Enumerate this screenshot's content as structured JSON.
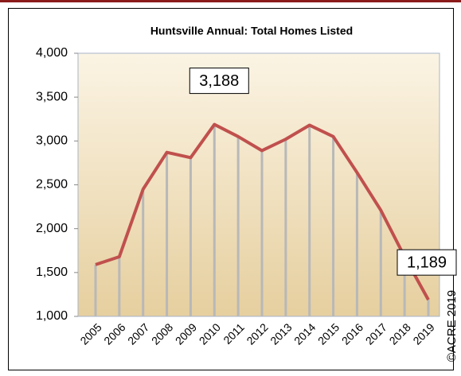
{
  "chart_data": {
    "type": "line",
    "title": "Huntsville Annual: Total Homes Listed",
    "categories": [
      "2005",
      "2006",
      "2007",
      "2008",
      "2009",
      "2010",
      "2011",
      "2012",
      "2013",
      "2014",
      "2015",
      "2016",
      "2017",
      "2018",
      "2019"
    ],
    "series": [
      {
        "name": "Total Homes Listed",
        "color": "#c0504d",
        "values": [
          1590,
          1680,
          2450,
          2870,
          2810,
          3188,
          3050,
          2890,
          3020,
          3180,
          3050,
          2640,
          2210,
          1680,
          1189
        ],
        "value_labels": [
          null,
          null,
          null,
          null,
          null,
          "3,188",
          null,
          null,
          null,
          null,
          null,
          null,
          null,
          null,
          "1,189"
        ]
      }
    ],
    "ylim": [
      1000,
      4000
    ],
    "yticks": [
      {
        "value": 1000,
        "label": "1,000"
      },
      {
        "value": 1500,
        "label": "1,500"
      },
      {
        "value": 2000,
        "label": "2,000"
      },
      {
        "value": 2500,
        "label": "2,500"
      },
      {
        "value": 3000,
        "label": "3,000"
      },
      {
        "value": 3500,
        "label": "3,500"
      },
      {
        "value": 4000,
        "label": "4,000"
      }
    ],
    "copyright": "©ACRE 2019"
  }
}
